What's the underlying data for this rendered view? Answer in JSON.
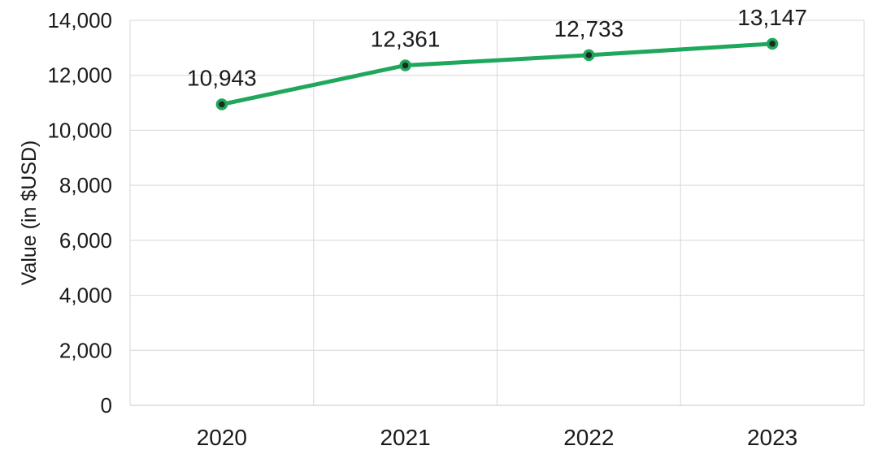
{
  "chart_data": {
    "type": "line",
    "title": "",
    "xlabel": "",
    "ylabel": "Value (in $USD)",
    "categories": [
      "2020",
      "2021",
      "2022",
      "2023"
    ],
    "series": [
      {
        "name": "Value",
        "values": [
          10943,
          12361,
          12733,
          13147
        ]
      }
    ],
    "point_labels": [
      "10,943",
      "12,361",
      "12,733",
      "13,147"
    ],
    "ylim": [
      0,
      14000
    ],
    "ytick_step": 2000,
    "ytick_labels": [
      "0",
      "2,000",
      "4,000",
      "6,000",
      "8,000",
      "10,000",
      "12,000",
      "14,000"
    ],
    "grid": true,
    "legend": "none",
    "colors": {
      "line": "#1fa75b",
      "marker_fill": "#1d2b21",
      "marker_ring": "#1fa75b",
      "grid": "#d7d7d7",
      "axis": "#c9c9c9",
      "text": "#1b1b1b",
      "background": "#ffffff"
    }
  }
}
